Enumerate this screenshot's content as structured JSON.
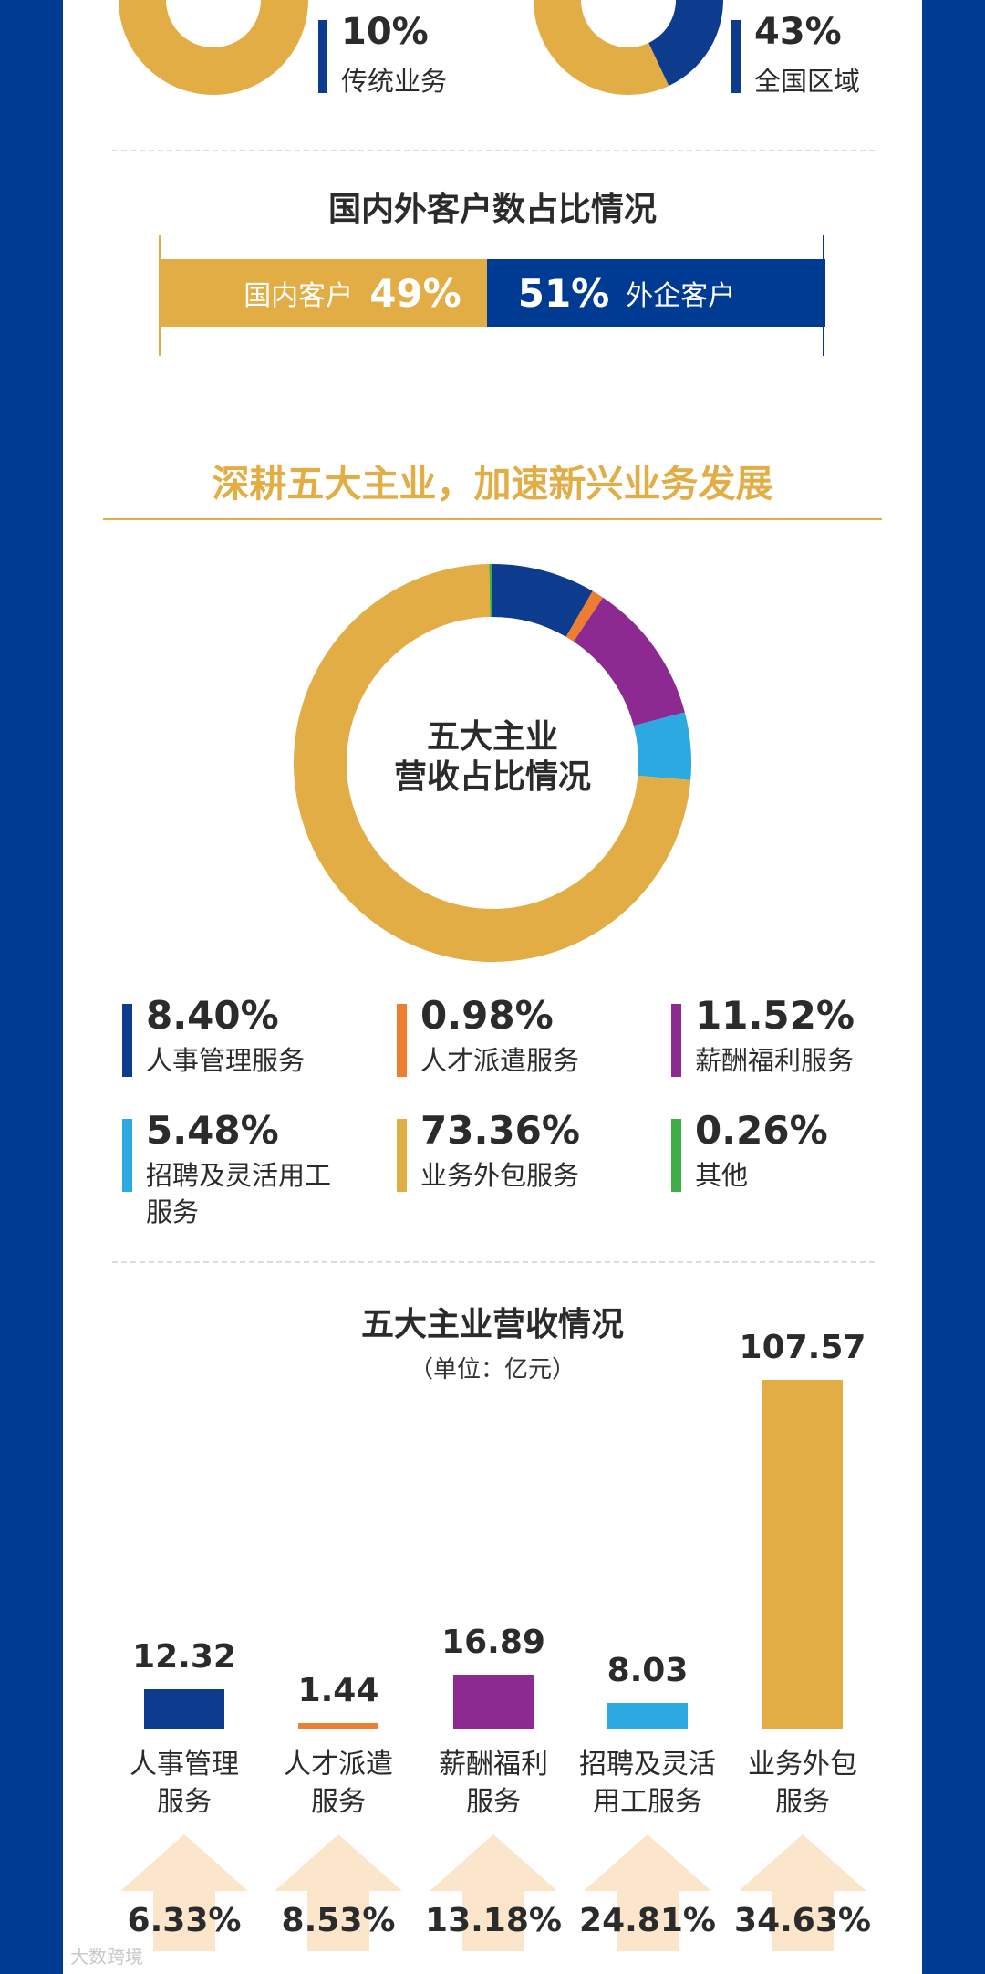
{
  "top_cards": [
    {
      "percent": "10%",
      "label": "传统业务",
      "ring_fraction": 0.1
    },
    {
      "percent": "43%",
      "label": "全国区域",
      "ring_fraction": 0.43
    }
  ],
  "client_split": {
    "title": "国内外客户数占比情况",
    "domestic_label": "国内客户",
    "domestic_pct": "49%",
    "domestic_value": 49,
    "foreign_pct": "51%",
    "foreign_label": "外企客户",
    "foreign_value": 51
  },
  "section_heading": "深耕五大主业，加速新兴业务发展",
  "colors": {
    "gold": "#e2ad45",
    "navy": "#0d3c8e",
    "orange": "#ed7d31",
    "purple": "#8c2a91",
    "sky": "#2ba9e0",
    "green": "#3fae49"
  },
  "donut": {
    "center_line1": "五大主业",
    "center_line2": "营收占比情况"
  },
  "bars_title": "五大主业营收情况",
  "bars_unit": "（单位：亿元）",
  "chart_data": [
    {
      "type": "pie",
      "slices": [
        {
          "label": "人事管理服务",
          "value": 8.4,
          "display": "8.40%",
          "color": "#0d3c8e"
        },
        {
          "label": "人才派遣服务",
          "value": 0.98,
          "display": "0.98%",
          "color": "#ed7d31"
        },
        {
          "label": "薪酬福利服务",
          "value": 11.52,
          "display": "11.52%",
          "color": "#8c2a91"
        },
        {
          "label": "招聘及灵活用工服务",
          "value": 5.48,
          "display": "5.48%",
          "color": "#2ba9e0"
        },
        {
          "label": "业务外包服务",
          "value": 73.36,
          "display": "73.36%",
          "color": "#e2ad45"
        },
        {
          "label": "其他",
          "value": 0.26,
          "display": "0.26%",
          "color": "#3fae49"
        }
      ]
    },
    {
      "type": "bar",
      "categories": [
        "人事管理服务",
        "人才派遣服务",
        "薪酬福利服务",
        "招聘及灵活用工服务",
        "业务外包服务"
      ],
      "category_lines": [
        [
          "人事管理",
          "服务"
        ],
        [
          "人才派遣",
          "服务"
        ],
        [
          "薪酬福利",
          "服务"
        ],
        [
          "招聘及灵活",
          "用工服务"
        ],
        [
          "业务外包",
          "服务"
        ]
      ],
      "values": [
        12.32,
        1.44,
        16.89,
        8.03,
        107.57
      ],
      "value_labels": [
        "12.32",
        "1.44",
        "16.89",
        "8.03",
        "107.57"
      ],
      "colors": [
        "#0d3c8e",
        "#ed7d31",
        "#8c2a91",
        "#2ba9e0",
        "#e2ad45"
      ],
      "growth": [
        "6.33%",
        "8.53%",
        "13.18%",
        "24.81%",
        "34.63%"
      ]
    }
  ],
  "watermark": "大数跨境"
}
